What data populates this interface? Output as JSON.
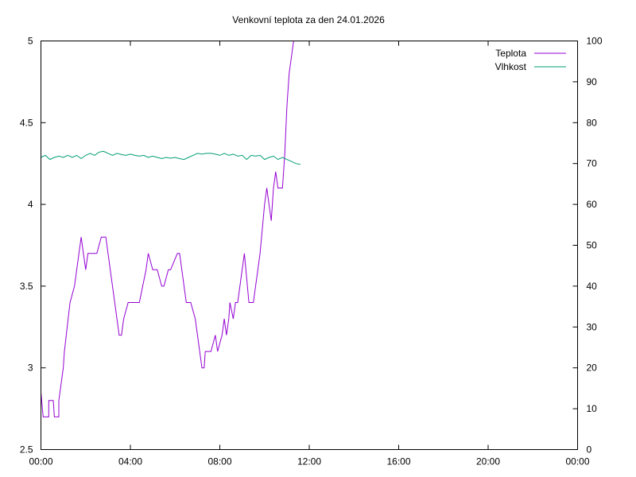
{
  "chart_data": {
    "type": "line",
    "title": "Venkovní teplota za den 24.01.2026",
    "xlabel": "",
    "ylabel": "",
    "y2label": "",
    "x_unit": "hours",
    "xlim": [
      0,
      24
    ],
    "ylim": [
      2.5,
      5
    ],
    "y2lim": [
      0,
      100
    ],
    "x_ticks": [
      "00:00",
      "04:00",
      "08:00",
      "12:00",
      "16:00",
      "20:00",
      "00:00"
    ],
    "y_ticks": [
      "2.5",
      "3",
      "3.5",
      "4",
      "4.5",
      "5"
    ],
    "y2_ticks": [
      "0",
      "10",
      "20",
      "30",
      "40",
      "50",
      "60",
      "70",
      "80",
      "90",
      "100"
    ],
    "grid": false,
    "legend_position": "top-right",
    "series": [
      {
        "name": "Teplota",
        "axis": "left",
        "color": "#9400d3",
        "x": [
          0.0,
          0.1,
          0.35,
          0.35,
          0.55,
          0.6,
          0.8,
          0.8,
          1.0,
          1.05,
          1.3,
          1.5,
          1.6,
          1.7,
          1.8,
          1.9,
          2.0,
          2.1,
          2.2,
          2.5,
          2.7,
          2.9,
          3.0,
          3.2,
          3.5,
          3.6,
          3.7,
          3.9,
          4.2,
          4.4,
          4.7,
          4.8,
          5.0,
          5.2,
          5.4,
          5.5,
          5.7,
          5.8,
          6.1,
          6.2,
          6.3,
          6.4,
          6.5,
          6.7,
          6.9,
          7.1,
          7.2,
          7.3,
          7.35,
          7.45,
          7.6,
          7.8,
          7.9,
          8.1,
          8.2,
          8.3,
          8.4,
          8.45,
          8.6,
          8.7,
          8.8,
          9.0,
          9.1,
          9.3,
          9.4,
          9.5,
          9.6,
          9.8,
          10.0,
          10.1,
          10.2,
          10.3,
          10.4,
          10.5,
          10.6,
          10.8,
          10.9,
          11.0,
          11.1,
          11.2,
          11.3
        ],
        "values": [
          2.85,
          2.7,
          2.7,
          2.8,
          2.8,
          2.7,
          2.7,
          2.8,
          3.0,
          3.1,
          3.4,
          3.5,
          3.6,
          3.7,
          3.8,
          3.7,
          3.6,
          3.7,
          3.7,
          3.7,
          3.8,
          3.8,
          3.7,
          3.5,
          3.2,
          3.2,
          3.3,
          3.4,
          3.4,
          3.4,
          3.6,
          3.7,
          3.6,
          3.6,
          3.5,
          3.5,
          3.6,
          3.6,
          3.7,
          3.7,
          3.6,
          3.5,
          3.4,
          3.4,
          3.3,
          3.1,
          3.0,
          3.0,
          3.1,
          3.1,
          3.1,
          3.2,
          3.1,
          3.2,
          3.3,
          3.2,
          3.3,
          3.4,
          3.3,
          3.4,
          3.4,
          3.6,
          3.7,
          3.4,
          3.4,
          3.4,
          3.5,
          3.7,
          4.0,
          4.1,
          4.0,
          3.9,
          4.1,
          4.2,
          4.1,
          4.1,
          4.3,
          4.6,
          4.8,
          4.9,
          5.0
        ]
      },
      {
        "name": "Vlhkost",
        "axis": "right",
        "color": "#009e73",
        "x": [
          0.0,
          0.2,
          0.4,
          0.6,
          0.8,
          1.0,
          1.2,
          1.4,
          1.6,
          1.8,
          2.0,
          2.2,
          2.4,
          2.6,
          2.8,
          3.0,
          3.2,
          3.4,
          3.6,
          3.8,
          4.0,
          4.2,
          4.4,
          4.6,
          4.8,
          5.0,
          5.2,
          5.4,
          5.6,
          5.8,
          6.0,
          6.2,
          6.4,
          6.6,
          6.8,
          7.0,
          7.2,
          7.4,
          7.6,
          7.8,
          8.0,
          8.2,
          8.4,
          8.6,
          8.8,
          9.0,
          9.2,
          9.4,
          9.6,
          9.8,
          10.0,
          10.2,
          10.4,
          10.6,
          10.8,
          11.0,
          11.2,
          11.4,
          11.6
        ],
        "values": [
          71.5,
          72.0,
          71.0,
          71.5,
          71.8,
          71.5,
          72.0,
          71.5,
          72.0,
          71.2,
          72.0,
          72.5,
          72.0,
          72.8,
          73.0,
          72.5,
          72.0,
          72.5,
          72.2,
          72.0,
          72.3,
          72.0,
          71.8,
          72.0,
          71.5,
          71.8,
          71.5,
          71.2,
          71.5,
          71.3,
          71.5,
          71.2,
          71.0,
          71.5,
          72.0,
          72.5,
          72.3,
          72.5,
          72.5,
          72.3,
          72.0,
          72.5,
          72.0,
          72.3,
          71.8,
          72.0,
          71.0,
          72.0,
          71.8,
          72.0,
          71.0,
          71.5,
          71.8,
          71.0,
          71.5,
          71.0,
          70.5,
          70.0,
          69.8
        ]
      }
    ]
  }
}
